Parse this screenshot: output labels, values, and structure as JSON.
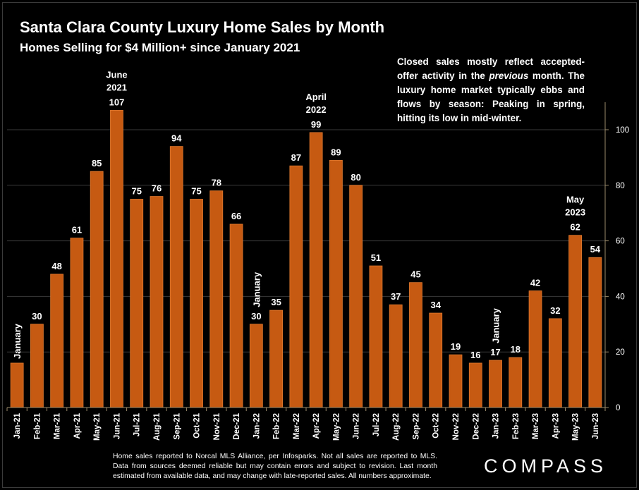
{
  "header": {
    "title": "Santa Clara County Luxury Home Sales by Month",
    "subtitle": "Homes Selling for $4 Million+ since January 2021"
  },
  "note": {
    "before": "Closed sales mostly reflect accepted-offer activity in the ",
    "emphasis": "previous",
    "after": " month. The luxury home market typically ebbs and flows by season: Peaking in spring, hitting its low in mid-winter."
  },
  "footer": {
    "text": "Home sales reported to Norcal MLS Alliance, per Infosparks. Not all sales are reported to MLS. Data from sources deemed reliable but may contain errors and subject to revision.   Last month estimated from available data, and may change with late-reported sales. All numbers approximate.",
    "logo": "COMPASS"
  },
  "colors": {
    "bar": "#c65a12",
    "bar_edge": "#e07a30",
    "background": "#000000",
    "text": "#ffffff",
    "gridline": "#3a3a3a",
    "axis": "#9a8a6a"
  },
  "chart_data": {
    "type": "bar",
    "categories": [
      "Jan-21",
      "Feb-21",
      "Mar-21",
      "Apr-21",
      "May-21",
      "Jun-21",
      "Jul-21",
      "Aug-21",
      "Sep-21",
      "Oct-21",
      "Nov-21",
      "Dec-21",
      "Jan-22",
      "Feb-22",
      "Mar-22",
      "Apr-22",
      "May-22",
      "Jun-22",
      "Jul-22",
      "Aug-22",
      "Sep-22",
      "Oct-22",
      "Nov-22",
      "Dec-22",
      "Jan-23",
      "Feb-23",
      "Mar-23",
      "Apr-23",
      "May-23",
      "Jun-23"
    ],
    "values": [
      16,
      30,
      48,
      61,
      85,
      107,
      75,
      76,
      94,
      75,
      78,
      66,
      30,
      35,
      87,
      99,
      89,
      80,
      51,
      37,
      45,
      34,
      19,
      16,
      17,
      18,
      42,
      32,
      62,
      54
    ],
    "data_labels": [
      "",
      "30",
      "48",
      "61",
      "85",
      "107",
      "75",
      "76",
      "94",
      "75",
      "78",
      "66",
      "30",
      "35",
      "87",
      "99",
      "89",
      "80",
      "51",
      "37",
      "45",
      "34",
      "19",
      "16",
      "17",
      "18",
      "42",
      "32",
      "62",
      "54"
    ],
    "ylim": [
      0,
      110
    ],
    "y_ticks": [
      0,
      20,
      40,
      60,
      80,
      100
    ],
    "y_axis_side": "right",
    "grid": true,
    "annotations": [
      {
        "index": 0,
        "lines": [
          "January"
        ],
        "orientation": "vertical"
      },
      {
        "index": 5,
        "lines": [
          "June",
          "2021"
        ],
        "orientation": "horizontal"
      },
      {
        "index": 12,
        "lines": [
          "January"
        ],
        "orientation": "vertical"
      },
      {
        "index": 15,
        "lines": [
          "April",
          "2022"
        ],
        "orientation": "horizontal"
      },
      {
        "index": 24,
        "lines": [
          "January"
        ],
        "orientation": "vertical"
      },
      {
        "index": 28,
        "lines": [
          "May",
          "2023"
        ],
        "orientation": "horizontal"
      }
    ]
  }
}
